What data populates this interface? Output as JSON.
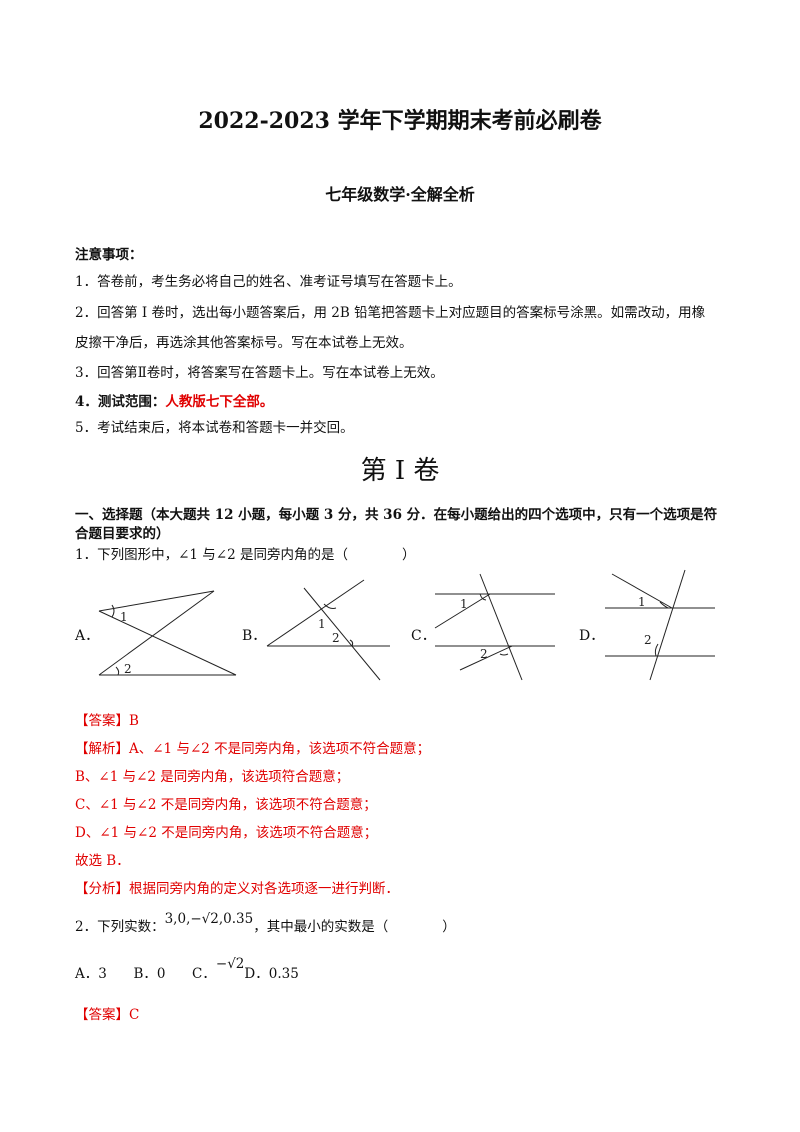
{
  "header": {
    "title": "2022-2023 学年下学期期末考前必刷卷",
    "subtitle": "七年级数学·全解全析"
  },
  "notice": {
    "heading": "注意事项：",
    "item1": "1．答卷前，考生务必将自己的姓名、准考证号填写在答题卡上。",
    "item2a": "2．回答第 I 卷时，选出每小题答案后，用 2B 铅笔把答题卡上对应题目的答案标号涂黑。如需改动，用橡",
    "item2b": "皮擦干净后，再选涂其他答案标号。写在本试卷上无效。",
    "item3": "3．回答第Ⅱ卷时，将答案写在答题卡上。写在本试卷上无效。",
    "item4_prefix": "4．测试范围：",
    "item4_scope": "人教版七下全部。",
    "item5": "5．考试结束后，将本试卷和答题卡一并交回。"
  },
  "section": {
    "title": "第 I 卷",
    "part1a": "一、选择题（本大题共 12 小题，每小题 3 分，共 36 分．在每小题给出的四个选项中，只有一个选项是符",
    "part1b": "合题目要求的）"
  },
  "q1": {
    "stem": "1．下列图形中，∠1 与∠2 是同旁内角的是（　　　　）",
    "options": [
      "A．",
      "B．",
      "C．",
      "D．"
    ],
    "fig_labels": [
      "1",
      "2"
    ],
    "answer": "【答案】B",
    "analysis1": "【解析】A、∠1 与∠2 不是同旁内角，该选项不符合题意；",
    "analysis2": "B、∠1 与∠2 是同旁内角，该选项符合题意；",
    "analysis3": "C、∠1 与∠2 不是同旁内角，该选项不符合题意；",
    "analysis4": "D、∠1 与∠2 不是同旁内角，该选项不符合题意；",
    "conclusion": "故选 B．",
    "method": "【分析】根据同旁内角的定义对各选项逐一进行判断．"
  },
  "q2": {
    "stem_prefix": "2．下列实数：",
    "stem_math": "3,0,−√2,0.35",
    "stem_suffix": "，其中最小的实数是（　　　　）",
    "optA": "A．3",
    "optB": "B．0",
    "optC": "C．",
    "optC_math": "−√2",
    "optD": "D．0.35",
    "answer": "【答案】C"
  }
}
